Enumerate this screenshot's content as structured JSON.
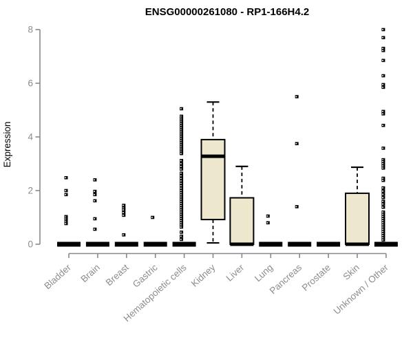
{
  "chart_data": {
    "type": "boxplot",
    "title": "ENSG00000261080 - RP1-166H4.2",
    "ylabel": "Expression",
    "xlabel": "",
    "ylim": [
      0,
      8
    ],
    "yticks": [
      0,
      2,
      4,
      6,
      8
    ],
    "grid": false,
    "legend": false,
    "categories": [
      "Bladder",
      "Brain",
      "Breast",
      "Gastric",
      "Hematopoietic cells",
      "Kidney",
      "Liver",
      "Lung",
      "Pancreas",
      "Prostate",
      "Skin",
      "Unknown / Other"
    ],
    "series": [
      {
        "name": "Bladder",
        "q1": 0,
        "median": 0,
        "q3": 0,
        "whisker_low": 0,
        "whisker_high": 0,
        "outliers": [
          2.48,
          2.0,
          1.85,
          1.03,
          0.97,
          0.9,
          0.84,
          0.77
        ]
      },
      {
        "name": "Brain",
        "q1": 0,
        "median": 0,
        "q3": 0,
        "whisker_low": 0,
        "whisker_high": 0,
        "outliers": [
          2.4,
          1.97,
          1.85,
          1.62,
          0.95,
          0.56
        ]
      },
      {
        "name": "Breast",
        "q1": 0,
        "median": 0,
        "q3": 0,
        "whisker_low": 0,
        "whisker_high": 0,
        "outliers": [
          1.45,
          1.35,
          1.28,
          1.18,
          1.08,
          0.35
        ]
      },
      {
        "name": "Gastric",
        "q1": 0,
        "median": 0,
        "q3": 0,
        "whisker_low": 0,
        "whisker_high": 0,
        "outliers": [
          1.0
        ]
      },
      {
        "name": "Hematopoietic cells",
        "q1": 0,
        "median": 0,
        "q3": 0,
        "whisker_low": 0,
        "whisker_high": 0,
        "outliers": [
          5.05,
          4.77,
          4.7,
          4.63,
          4.56,
          4.49,
          4.42,
          4.35,
          4.28,
          4.21,
          4.14,
          4.07,
          4.0,
          3.93,
          3.86,
          3.79,
          3.72,
          3.65,
          3.58,
          3.51,
          3.44,
          3.38,
          3.12,
          3.0,
          2.9,
          2.8,
          2.65,
          2.55,
          2.45,
          2.36,
          2.27,
          2.18,
          2.09,
          2.0,
          1.92,
          1.84,
          1.76,
          1.68,
          1.6,
          1.52,
          1.44,
          1.36,
          1.28,
          1.2,
          1.12,
          1.04,
          0.96,
          0.88,
          0.8,
          0.72,
          0.64,
          0.45,
          0.3,
          0.18
        ]
      },
      {
        "name": "Kidney",
        "q1": 0.92,
        "median": 3.28,
        "q3": 3.9,
        "whisker_low": 0.05,
        "whisker_high": 5.3,
        "outliers": []
      },
      {
        "name": "Liver",
        "q1": 0,
        "median": 0,
        "q3": 1.73,
        "whisker_low": 0,
        "whisker_high": 2.9,
        "outliers": []
      },
      {
        "name": "Lung",
        "q1": 0,
        "median": 0,
        "q3": 0,
        "whisker_low": 0,
        "whisker_high": 0,
        "outliers": [
          1.05,
          0.8
        ]
      },
      {
        "name": "Pancreas",
        "q1": 0,
        "median": 0,
        "q3": 0,
        "whisker_low": 0,
        "whisker_high": 0,
        "outliers": [
          5.5,
          3.75,
          1.4
        ]
      },
      {
        "name": "Prostate",
        "q1": 0,
        "median": 0,
        "q3": 0,
        "whisker_low": 0,
        "whisker_high": 0,
        "outliers": []
      },
      {
        "name": "Skin",
        "q1": 0,
        "median": 0,
        "q3": 1.9,
        "whisker_low": 0,
        "whisker_high": 2.87,
        "outliers": []
      },
      {
        "name": "Unknown / Other",
        "q1": 0,
        "median": 0,
        "q3": 0,
        "whisker_low": 0,
        "whisker_high": 0,
        "outliers": [
          8.0,
          7.7,
          7.3,
          7.22,
          6.85,
          6.28,
          5.95,
          5.85,
          4.95,
          4.86,
          4.43,
          3.58,
          3.15,
          3.08,
          3.0,
          2.92,
          2.84,
          2.46,
          2.38,
          2.1,
          1.98,
          1.86,
          1.74,
          1.6,
          1.5,
          1.38,
          1.2,
          1.12,
          1.04,
          0.96,
          0.88,
          0.8,
          0.72,
          0.64,
          0.56,
          0.48,
          0.4,
          0.32,
          0.24,
          0.16
        ]
      }
    ],
    "colors": {
      "box_fill": "#EDE8CD",
      "box_stroke": "#000000",
      "point": "#000000",
      "axis": "#888888",
      "tick_label": "#8C8C8C",
      "title": "#000000"
    }
  }
}
